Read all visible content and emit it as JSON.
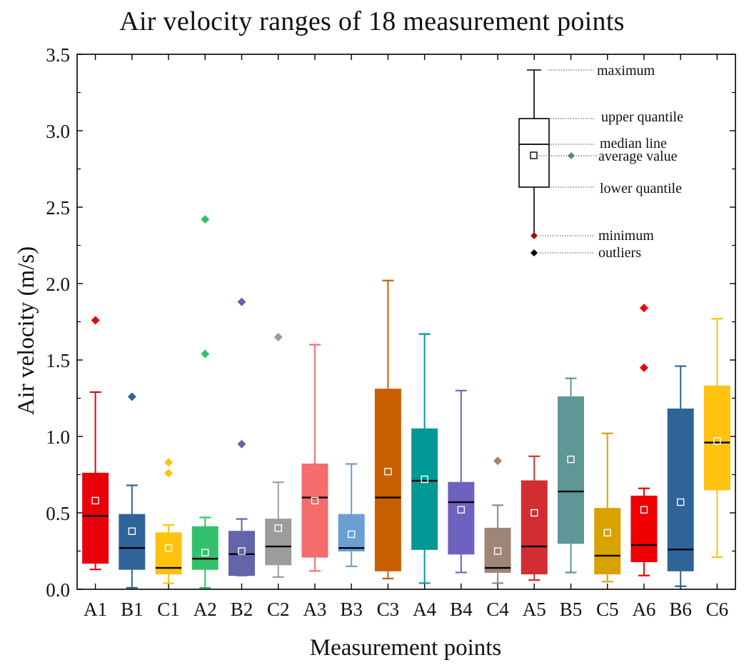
{
  "chart_data": {
    "type": "boxplot",
    "title": "Air velocity ranges of 18 measurement points",
    "xlabel": "Measurement points",
    "ylabel": "Air velocity (m/s)",
    "ylim": [
      0,
      3.5
    ],
    "yticks": [
      "0.0",
      "0.5",
      "1.0",
      "1.5",
      "2.0",
      "2.5",
      "3.0",
      "3.5"
    ],
    "categories": [
      "A1",
      "B1",
      "C1",
      "A2",
      "B2",
      "C2",
      "A3",
      "B3",
      "C3",
      "A4",
      "B4",
      "C4",
      "A5",
      "B5",
      "C5",
      "A6",
      "B6",
      "C6"
    ],
    "series": [
      {
        "name": "A1",
        "color": "#e8000b",
        "min": 0.13,
        "q1": 0.17,
        "median": 0.48,
        "q3": 0.76,
        "max": 1.29,
        "mean": 0.58,
        "outliers": [
          1.76
        ]
      },
      {
        "name": "B1",
        "color": "#2e6498",
        "min": 0.01,
        "q1": 0.13,
        "median": 0.27,
        "q3": 0.49,
        "max": 0.68,
        "mean": 0.38,
        "outliers": [
          1.26
        ]
      },
      {
        "name": "C1",
        "color": "#ffc20e",
        "min": 0.04,
        "q1": 0.1,
        "median": 0.14,
        "q3": 0.37,
        "max": 0.42,
        "mean": 0.27,
        "outliers": [
          0.76,
          0.83
        ]
      },
      {
        "name": "A2",
        "color": "#33c06a",
        "min": 0.01,
        "q1": 0.13,
        "median": 0.2,
        "q3": 0.41,
        "max": 0.47,
        "mean": 0.24,
        "outliers": [
          1.54,
          2.42
        ]
      },
      {
        "name": "B2",
        "color": "#6464a8",
        "min": 0.09,
        "q1": 0.09,
        "median": 0.23,
        "q3": 0.38,
        "max": 0.46,
        "mean": 0.25,
        "outliers": [
          0.95,
          1.88
        ]
      },
      {
        "name": "C2",
        "color": "#9c9c9c",
        "min": 0.08,
        "q1": 0.16,
        "median": 0.28,
        "q3": 0.46,
        "max": 0.7,
        "mean": 0.4,
        "outliers": [
          1.65
        ]
      },
      {
        "name": "A3",
        "color": "#f46c6c",
        "min": 0.12,
        "q1": 0.21,
        "median": 0.6,
        "q3": 0.82,
        "max": 1.6,
        "mean": 0.58,
        "outliers": []
      },
      {
        "name": "B3",
        "color": "#6a9fd4",
        "min": 0.15,
        "q1": 0.25,
        "median": 0.27,
        "q3": 0.49,
        "max": 0.82,
        "mean": 0.36,
        "outliers": []
      },
      {
        "name": "C3",
        "color": "#c85f00",
        "min": 0.07,
        "q1": 0.12,
        "median": 0.6,
        "q3": 1.31,
        "max": 2.02,
        "mean": 0.77,
        "outliers": []
      },
      {
        "name": "A4",
        "color": "#009995",
        "min": 0.04,
        "q1": 0.26,
        "median": 0.71,
        "q3": 1.05,
        "max": 1.67,
        "mean": 0.72,
        "outliers": []
      },
      {
        "name": "B4",
        "color": "#6e62c0",
        "min": 0.11,
        "q1": 0.23,
        "median": 0.57,
        "q3": 0.7,
        "max": 1.3,
        "mean": 0.52,
        "outliers": []
      },
      {
        "name": "C4",
        "color": "#9e8576",
        "min": 0.04,
        "q1": 0.11,
        "median": 0.14,
        "q3": 0.4,
        "max": 0.55,
        "mean": 0.25,
        "outliers": [
          0.84
        ]
      },
      {
        "name": "A5",
        "color": "#d12d32",
        "min": 0.06,
        "q1": 0.1,
        "median": 0.28,
        "q3": 0.71,
        "max": 0.87,
        "mean": 0.5,
        "outliers": []
      },
      {
        "name": "B5",
        "color": "#5f9696",
        "min": 0.11,
        "q1": 0.3,
        "median": 0.64,
        "q3": 1.26,
        "max": 1.38,
        "mean": 0.85,
        "outliers": []
      },
      {
        "name": "C5",
        "color": "#d8a300",
        "min": 0.05,
        "q1": 0.1,
        "median": 0.22,
        "q3": 0.53,
        "max": 1.02,
        "mean": 0.37,
        "outliers": []
      },
      {
        "name": "A6",
        "color": "#f00000",
        "min": 0.09,
        "q1": 0.18,
        "median": 0.29,
        "q3": 0.61,
        "max": 0.66,
        "mean": 0.52,
        "outliers": [
          1.45,
          1.84
        ]
      },
      {
        "name": "B6",
        "color": "#2e6498",
        "min": 0.02,
        "q1": 0.12,
        "median": 0.26,
        "q3": 1.18,
        "max": 1.46,
        "mean": 0.57,
        "outliers": []
      },
      {
        "name": "C6",
        "color": "#ffc20e",
        "min": 0.21,
        "q1": 0.65,
        "median": 0.96,
        "q3": 1.33,
        "max": 1.77,
        "mean": 0.97,
        "outliers": []
      }
    ],
    "legend": {
      "placement": "top-right",
      "labels": {
        "maximum": "maximum",
        "upper_quantile": "upper quantile",
        "median_line": "median line",
        "average_value": "average value",
        "lower_quantile": "lower quantile",
        "minimum": "minimum",
        "outliers": "outliers"
      },
      "marker_colors": {
        "average": "#4a8f8f",
        "minimum": "#a01010",
        "outliers": "#000000"
      }
    }
  }
}
